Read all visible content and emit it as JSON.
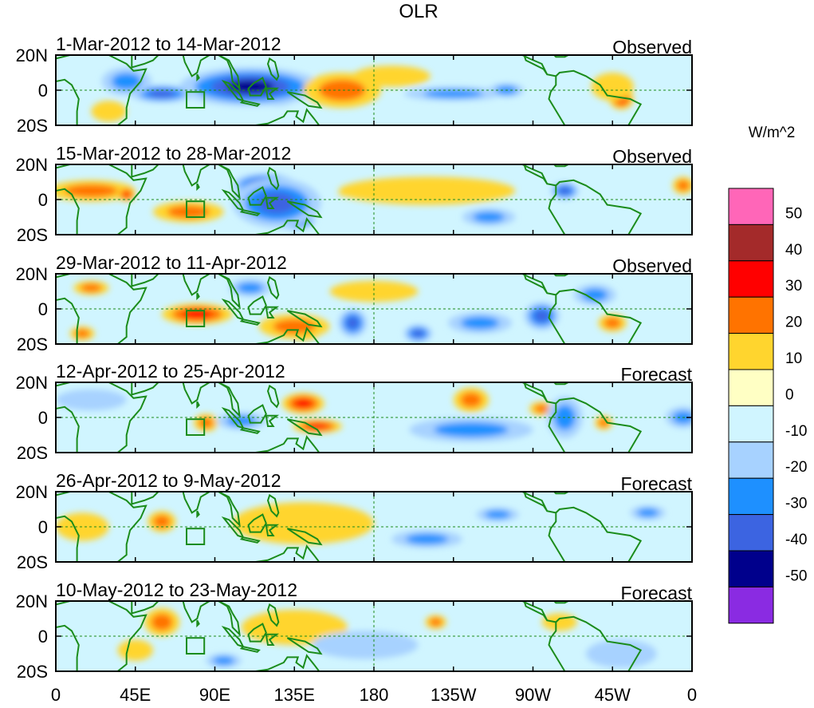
{
  "chart_data": {
    "type": "heatmap",
    "title": "OLR",
    "units": "W/m^2",
    "lat_ticks": [
      "20N",
      "0",
      "20S"
    ],
    "lat_range": [
      -20,
      20
    ],
    "lon_ticks": [
      "0",
      "45E",
      "90E",
      "135E",
      "180",
      "135W",
      "90W",
      "45W",
      "0"
    ],
    "lon_range": [
      0,
      360
    ],
    "colorbar": {
      "labels": [
        "50",
        "40",
        "30",
        "20",
        "10",
        "0",
        "-10",
        "-20",
        "-30",
        "-40",
        "-50"
      ],
      "levels": [
        50,
        40,
        30,
        20,
        10,
        0,
        -10,
        -20,
        -30,
        -40,
        -50
      ],
      "colors": [
        "#ff66b8",
        "#a42a2a",
        "#ff0000",
        "#ff7300",
        "#ffd52e",
        "#ffffc4",
        "#d0f5ff",
        "#a7d2ff",
        "#1e90ff",
        "#3c64e1",
        "#00008c",
        "#8a2be2"
      ]
    },
    "panels": [
      {
        "label": "1-Mar-2012 to 14-Mar-2012",
        "kind": "Observed",
        "anomalies": [
          {
            "lon": 100,
            "lat": -2,
            "value": -50,
            "rlon": 22,
            "rlat": 6
          },
          {
            "lon": 125,
            "lat": -3,
            "value": -50,
            "rlon": 12,
            "rlat": 6
          },
          {
            "lon": 110,
            "lat": 2,
            "value": -40,
            "rlon": 40,
            "rlat": 11
          },
          {
            "lon": 60,
            "lat": -2,
            "value": -30,
            "rlon": 18,
            "rlat": 5
          },
          {
            "lon": 40,
            "lat": 5,
            "value": -20,
            "rlon": 14,
            "rlat": 8
          },
          {
            "lon": 225,
            "lat": -2,
            "value": -20,
            "rlon": 28,
            "rlat": 4
          },
          {
            "lon": 255,
            "lat": 0,
            "value": -20,
            "rlon": 10,
            "rlat": 4
          },
          {
            "lon": 158,
            "lat": 0,
            "value": 40,
            "rlon": 12,
            "rlat": 6
          },
          {
            "lon": 162,
            "lat": 0,
            "value": 20,
            "rlon": 22,
            "rlat": 10
          },
          {
            "lon": 320,
            "lat": -5,
            "value": 30,
            "rlon": 7,
            "rlat": 6
          },
          {
            "lon": 315,
            "lat": 2,
            "value": 10,
            "rlon": 12,
            "rlat": 8
          },
          {
            "lon": 190,
            "lat": 8,
            "value": 10,
            "rlon": 22,
            "rlat": 6
          },
          {
            "lon": 30,
            "lat": -12,
            "value": 10,
            "rlon": 10,
            "rlat": 6
          }
        ]
      },
      {
        "label": "15-Mar-2012 to 28-Mar-2012",
        "kind": "Observed",
        "anomalies": [
          {
            "lon": 118,
            "lat": 8,
            "value": -40,
            "rlon": 18,
            "rlat": 7
          },
          {
            "lon": 135,
            "lat": -12,
            "value": -40,
            "rlon": 12,
            "rlat": 5
          },
          {
            "lon": 125,
            "lat": -2,
            "value": -30,
            "rlon": 25,
            "rlat": 14
          },
          {
            "lon": 288,
            "lat": 5,
            "value": -30,
            "rlon": 8,
            "rlat": 5
          },
          {
            "lon": 245,
            "lat": -10,
            "value": -20,
            "rlon": 15,
            "rlat": 5
          },
          {
            "lon": 20,
            "lat": 5,
            "value": 20,
            "rlon": 25,
            "rlat": 6
          },
          {
            "lon": 40,
            "lat": 3,
            "value": 30,
            "rlon": 5,
            "rlat": 4
          },
          {
            "lon": 75,
            "lat": -7,
            "value": 20,
            "rlon": 20,
            "rlat": 6
          },
          {
            "lon": 200,
            "lat": 3,
            "value": 20,
            "rlon": 40,
            "rlat": 3
          },
          {
            "lon": 210,
            "lat": 5,
            "value": 10,
            "rlon": 50,
            "rlat": 8
          },
          {
            "lon": 355,
            "lat": 8,
            "value": 20,
            "rlon": 6,
            "rlat": 5
          }
        ]
      },
      {
        "label": "29-Mar-2012 to 11-Apr-2012",
        "kind": "Observed",
        "anomalies": [
          {
            "lon": 80,
            "lat": -3,
            "value": 30,
            "rlon": 20,
            "rlat": 6
          },
          {
            "lon": 140,
            "lat": -13,
            "value": 40,
            "rlon": 10,
            "rlat": 5
          },
          {
            "lon": 135,
            "lat": -10,
            "value": 20,
            "rlon": 20,
            "rlat": 7
          },
          {
            "lon": 15,
            "lat": -14,
            "value": 20,
            "rlon": 7,
            "rlat": 4
          },
          {
            "lon": 20,
            "lat": 12,
            "value": 20,
            "rlon": 10,
            "rlat": 4
          },
          {
            "lon": 315,
            "lat": -8,
            "value": 20,
            "rlon": 8,
            "rlat": 5
          },
          {
            "lon": 275,
            "lat": -4,
            "value": -30,
            "rlon": 10,
            "rlat": 8
          },
          {
            "lon": 168,
            "lat": -8,
            "value": -30,
            "rlon": 8,
            "rlat": 8
          },
          {
            "lon": 205,
            "lat": -14,
            "value": -30,
            "rlon": 8,
            "rlat": 5
          },
          {
            "lon": 240,
            "lat": -8,
            "value": -20,
            "rlon": 18,
            "rlat": 6
          },
          {
            "lon": 305,
            "lat": 8,
            "value": -20,
            "rlon": 12,
            "rlat": 6
          },
          {
            "lon": 110,
            "lat": 12,
            "value": -20,
            "rlon": 12,
            "rlat": 5
          },
          {
            "lon": 180,
            "lat": 10,
            "value": 10,
            "rlon": 25,
            "rlat": 6
          }
        ]
      },
      {
        "label": "12-Apr-2012 to 25-Apr-2012",
        "kind": "Forecast",
        "anomalies": [
          {
            "lon": 140,
            "lat": 8,
            "value": 30,
            "rlon": 12,
            "rlat": 6
          },
          {
            "lon": 148,
            "lat": -5,
            "value": 30,
            "rlon": 14,
            "rlat": 4
          },
          {
            "lon": 235,
            "lat": 10,
            "value": 20,
            "rlon": 10,
            "rlat": 7
          },
          {
            "lon": 275,
            "lat": 5,
            "value": 20,
            "rlon": 7,
            "rlat": 4
          },
          {
            "lon": 310,
            "lat": -3,
            "value": 20,
            "rlon": 5,
            "rlat": 4
          },
          {
            "lon": 85,
            "lat": -3,
            "value": 20,
            "rlon": 7,
            "rlat": 5
          },
          {
            "lon": 235,
            "lat": -7,
            "value": -20,
            "rlon": 35,
            "rlat": 7
          },
          {
            "lon": 288,
            "lat": 0,
            "value": -20,
            "rlon": 10,
            "rlat": 12
          },
          {
            "lon": 355,
            "lat": 0,
            "value": -20,
            "rlon": 10,
            "rlat": 6
          },
          {
            "lon": 105,
            "lat": -2,
            "value": -20,
            "rlon": 14,
            "rlat": 5
          },
          {
            "lon": 20,
            "lat": 10,
            "value": -10,
            "rlon": 20,
            "rlat": 6
          }
        ]
      },
      {
        "label": "26-Apr-2012 to 9-May-2012",
        "kind": "Forecast",
        "anomalies": [
          {
            "lon": 140,
            "lat": 5,
            "value": 20,
            "rlon": 25,
            "rlat": 7
          },
          {
            "lon": 60,
            "lat": 3,
            "value": 20,
            "rlon": 8,
            "rlat": 6
          },
          {
            "lon": 150,
            "lat": -4,
            "value": 20,
            "rlon": 12,
            "rlat": 4
          },
          {
            "lon": 140,
            "lat": 2,
            "value": 10,
            "rlon": 40,
            "rlat": 12
          },
          {
            "lon": 210,
            "lat": -7,
            "value": -20,
            "rlon": 20,
            "rlat": 5
          },
          {
            "lon": 250,
            "lat": 7,
            "value": -20,
            "rlon": 12,
            "rlat": 4
          },
          {
            "lon": 335,
            "lat": 8,
            "value": -20,
            "rlon": 10,
            "rlat": 4
          },
          {
            "lon": 15,
            "lat": 0,
            "value": 10,
            "rlon": 15,
            "rlat": 8
          }
        ]
      },
      {
        "label": "10-May-2012 to 23-May-2012",
        "kind": "Forecast",
        "anomalies": [
          {
            "lon": 60,
            "lat": 8,
            "value": 20,
            "rlon": 10,
            "rlat": 8
          },
          {
            "lon": 215,
            "lat": 8,
            "value": 20,
            "rlon": 6,
            "rlat": 4
          },
          {
            "lon": 285,
            "lat": 8,
            "value": 10,
            "rlon": 10,
            "rlat": 5
          },
          {
            "lon": 135,
            "lat": 5,
            "value": 10,
            "rlon": 30,
            "rlat": 10
          },
          {
            "lon": 190,
            "lat": -3,
            "value": -20,
            "rlon": 8,
            "rlat": 3
          },
          {
            "lon": 95,
            "lat": -14,
            "value": -20,
            "rlon": 10,
            "rlat": 4
          },
          {
            "lon": 175,
            "lat": -5,
            "value": -10,
            "rlon": 30,
            "rlat": 8
          },
          {
            "lon": 320,
            "lat": -10,
            "value": -10,
            "rlon": 20,
            "rlat": 8
          },
          {
            "lon": 45,
            "lat": -8,
            "value": 10,
            "rlon": 10,
            "rlat": 6
          }
        ]
      }
    ]
  }
}
